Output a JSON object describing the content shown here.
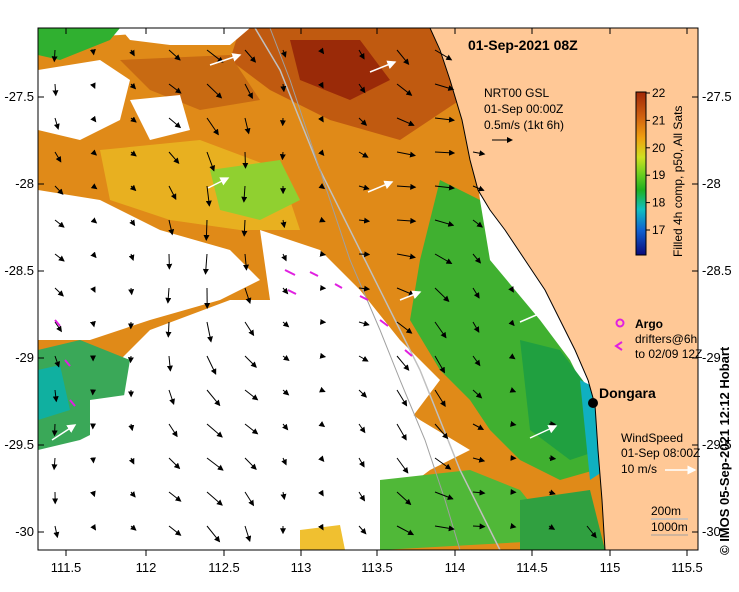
{
  "map": {
    "title": "01-Sep-2021 08Z",
    "x_ticks": [
      "111.5",
      "112",
      "112.5",
      "113",
      "113.5",
      "114",
      "114.5",
      "115",
      "115.5"
    ],
    "y_ticks": [
      "-27.5",
      "-28",
      "-28.5",
      "-29",
      "-29.5",
      "-30"
    ],
    "current_legend": {
      "line1": "NRT00 GSL",
      "line2": "01-Sep 00:00Z",
      "line3": "0.5m/s (1kt 6h)"
    },
    "colorbar": {
      "ticks": [
        "22",
        "21",
        "20",
        "19",
        "18",
        "17"
      ],
      "label": "Filled 4h comp, p50, All Sats",
      "min": 16.5,
      "max": 22,
      "colors": [
        "#0a0a7a",
        "#1060d0",
        "#10c0c0",
        "#20b020",
        "#70d020",
        "#d0e020",
        "#f0a010",
        "#d06010",
        "#a02808"
      ]
    },
    "argo_label": "Argo",
    "drifters_line1": "drifters@6h",
    "drifters_line2": "to 02/09 12Z",
    "place": "Dongara",
    "wind_legend": {
      "line1": "WindSpeed",
      "line2": "01-Sep 08:00Z",
      "line3": "10 m/s"
    },
    "depth_legend": {
      "line1": "200m",
      "line2": "1000m"
    },
    "credit": "© IMOS 05-Sep-2021 12:12 Hobart",
    "colors": {
      "land": "#ffc896",
      "ocean_cloud": "#ffffff",
      "argo": "#e020e0",
      "city": "#000000"
    }
  }
}
